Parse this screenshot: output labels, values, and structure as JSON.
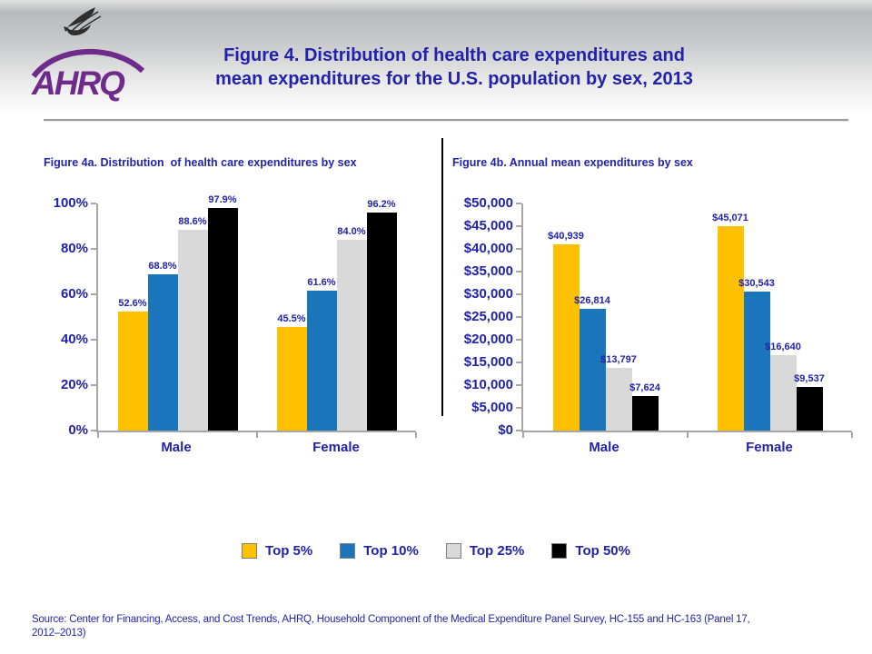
{
  "slide": {
    "title_lines": [
      "Figure 4. Distribution of health care expenditures and",
      "mean expenditures for the U.S. population by sex, 2013"
    ],
    "logo": {
      "wordmark": "AHRQ"
    },
    "source_lines": [
      "Source: Center for Financing, Access, and Cost Trends, AHRQ, Household Component of the Medical Expenditure Panel Survey, HC-155 and HC-163 (Panel 17,",
      "2012–2013)"
    ]
  },
  "colors": {
    "text_blue": "#2222aa",
    "logo_purple": "#6f2b8b",
    "axis_gray": "#a6a6a6",
    "top5_gold": "#FFC000",
    "top10_blue": "#1B75BB",
    "top25_gray": "#D9D9D9",
    "top50_black": "#000000"
  },
  "legend": {
    "items": [
      {
        "label": "Top 5%",
        "color": "#FFC000"
      },
      {
        "label": "Top 10%",
        "color": "#1B75BB"
      },
      {
        "label": "Top 25%",
        "color": "#D9D9D9"
      },
      {
        "label": "Top 50%",
        "color": "#000000"
      }
    ]
  },
  "chart_data": [
    {
      "type": "bar",
      "title": "Figure 4a. Distribution  of health care expenditures by sex",
      "categories": [
        "Male",
        "Female"
      ],
      "series": [
        {
          "name": "Top 5%",
          "color": "#FFC000",
          "values": [
            52.6,
            45.5
          ]
        },
        {
          "name": "Top 10%",
          "color": "#1B75BB",
          "values": [
            68.8,
            61.6
          ]
        },
        {
          "name": "Top 25%",
          "color": "#D9D9D9",
          "values": [
            88.6,
            84.0
          ]
        },
        {
          "name": "Top 50%",
          "color": "#000000",
          "values": [
            97.9,
            96.2
          ]
        }
      ],
      "value_labels": [
        [
          "52.6%",
          "68.8%",
          "88.6%",
          "97.9%"
        ],
        [
          "45.5%",
          "61.6%",
          "84.0%",
          "96.2%"
        ]
      ],
      "xlabel": "",
      "ylabel": "",
      "ylim": [
        0,
        100
      ],
      "ytick_values": [
        0,
        20,
        40,
        60,
        80,
        100
      ],
      "ytick_labels": [
        "0%",
        "20%",
        "40%",
        "60%",
        "80%",
        "100%"
      ],
      "grid": false,
      "legend_position": "bottom-shared"
    },
    {
      "type": "bar",
      "title": "Figure 4b. Annual mean expenditures by sex",
      "categories": [
        "Male",
        "Female"
      ],
      "series": [
        {
          "name": "Top 5%",
          "color": "#FFC000",
          "values": [
            40939,
            45071
          ]
        },
        {
          "name": "Top 10%",
          "color": "#1B75BB",
          "values": [
            26814,
            30543
          ]
        },
        {
          "name": "Top 25%",
          "color": "#D9D9D9",
          "values": [
            13797,
            16640
          ]
        },
        {
          "name": "Top 50%",
          "color": "#000000",
          "values": [
            7624,
            9537
          ]
        }
      ],
      "value_labels": [
        [
          "$40,939",
          "$26,814",
          "$13,797",
          "$7,624"
        ],
        [
          "$45,071",
          "$30,543",
          "$16,640",
          "$9,537"
        ]
      ],
      "xlabel": "",
      "ylabel": "",
      "ylim": [
        0,
        50000
      ],
      "ytick_values": [
        0,
        5000,
        10000,
        15000,
        20000,
        25000,
        30000,
        35000,
        40000,
        45000,
        50000
      ],
      "ytick_labels": [
        "$0",
        "$5,000",
        "$10,000",
        "$15,000",
        "$20,000",
        "$25,000",
        "$30,000",
        "$35,000",
        "$40,000",
        "$45,000",
        "$50,000"
      ],
      "grid": false,
      "legend_position": "bottom-shared"
    }
  ]
}
